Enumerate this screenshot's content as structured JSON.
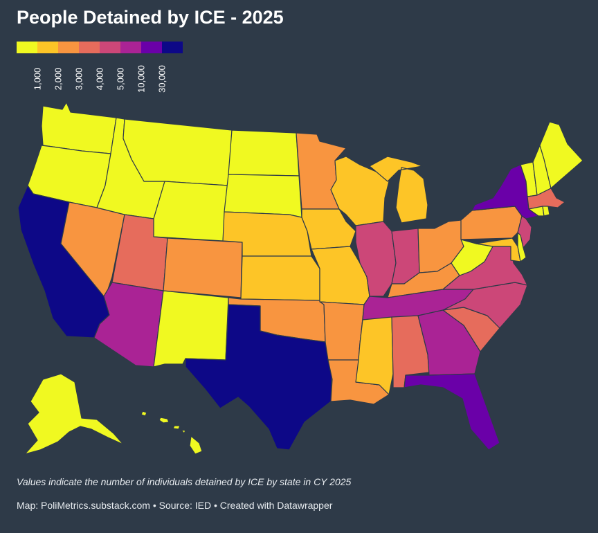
{
  "title": "People Detained by ICE - 2025",
  "legend": {
    "bins": [
      {
        "label": "1,000",
        "color": "#f0f921"
      },
      {
        "label": "2,000",
        "color": "#fdc527"
      },
      {
        "label": "3,000",
        "color": "#f89540"
      },
      {
        "label": "4,000",
        "color": "#e66c5c"
      },
      {
        "label": "5,000",
        "color": "#cc4778"
      },
      {
        "label": "10,000",
        "color": "#aa2395"
      },
      {
        "label": "30,000",
        "color": "#6a00a8"
      },
      {
        "label": "",
        "color": "#0d0887"
      }
    ]
  },
  "states": [
    {
      "name": "Washington",
      "color": "#f0f921"
    },
    {
      "name": "Oregon",
      "color": "#f0f921"
    },
    {
      "name": "California",
      "color": "#0d0887"
    },
    {
      "name": "Nevada",
      "color": "#f89540"
    },
    {
      "name": "Idaho",
      "color": "#f0f921"
    },
    {
      "name": "Montana",
      "color": "#f0f921"
    },
    {
      "name": "Wyoming",
      "color": "#f0f921"
    },
    {
      "name": "Utah",
      "color": "#e66c5c"
    },
    {
      "name": "Arizona",
      "color": "#aa2395"
    },
    {
      "name": "New Mexico",
      "color": "#f0f921"
    },
    {
      "name": "Colorado",
      "color": "#f89540"
    },
    {
      "name": "North Dakota",
      "color": "#f0f921"
    },
    {
      "name": "South Dakota",
      "color": "#f0f921"
    },
    {
      "name": "Nebraska",
      "color": "#fdc527"
    },
    {
      "name": "Kansas",
      "color": "#fdc527"
    },
    {
      "name": "Oklahoma",
      "color": "#f89540"
    },
    {
      "name": "Texas",
      "color": "#0d0887"
    },
    {
      "name": "Minnesota",
      "color": "#f89540"
    },
    {
      "name": "Iowa",
      "color": "#fdc527"
    },
    {
      "name": "Missouri",
      "color": "#fdc527"
    },
    {
      "name": "Arkansas",
      "color": "#f89540"
    },
    {
      "name": "Louisiana",
      "color": "#f89540"
    },
    {
      "name": "Wisconsin",
      "color": "#fdc527"
    },
    {
      "name": "Illinois",
      "color": "#cc4778"
    },
    {
      "name": "Michigan",
      "color": "#fdc527"
    },
    {
      "name": "Indiana",
      "color": "#cc4778"
    },
    {
      "name": "Ohio",
      "color": "#f89540"
    },
    {
      "name": "Kentucky",
      "color": "#f89540"
    },
    {
      "name": "Tennessee",
      "color": "#aa2395"
    },
    {
      "name": "Mississippi",
      "color": "#fdc527"
    },
    {
      "name": "Alabama",
      "color": "#e66c5c"
    },
    {
      "name": "Georgia",
      "color": "#aa2395"
    },
    {
      "name": "Florida",
      "color": "#6a00a8"
    },
    {
      "name": "South Carolina",
      "color": "#e66c5c"
    },
    {
      "name": "North Carolina",
      "color": "#cc4778"
    },
    {
      "name": "Virginia",
      "color": "#cc4778"
    },
    {
      "name": "West Virginia",
      "color": "#f0f921"
    },
    {
      "name": "Pennsylvania",
      "color": "#f89540"
    },
    {
      "name": "New York",
      "color": "#6a00a8"
    },
    {
      "name": "New Jersey",
      "color": "#cc4778"
    },
    {
      "name": "Maryland",
      "color": "#fdc527"
    },
    {
      "name": "Delaware",
      "color": "#f0f921"
    },
    {
      "name": "Vermont",
      "color": "#f0f921"
    },
    {
      "name": "New Hampshire",
      "color": "#f0f921"
    },
    {
      "name": "Maine",
      "color": "#f0f921"
    },
    {
      "name": "Massachusetts",
      "color": "#e66c5c"
    },
    {
      "name": "Connecticut",
      "color": "#f0f921"
    },
    {
      "name": "Rhode Island",
      "color": "#f0f921"
    },
    {
      "name": "Alaska",
      "color": "#f0f921"
    },
    {
      "name": "Hawaii",
      "color": "#f0f921"
    }
  ],
  "caption": "Values indicate the number of individuals detained by ICE by state in CY 2025",
  "source": "Map: PoliMetrics.substack.com • Source: IED • Created with Datawrapper"
}
